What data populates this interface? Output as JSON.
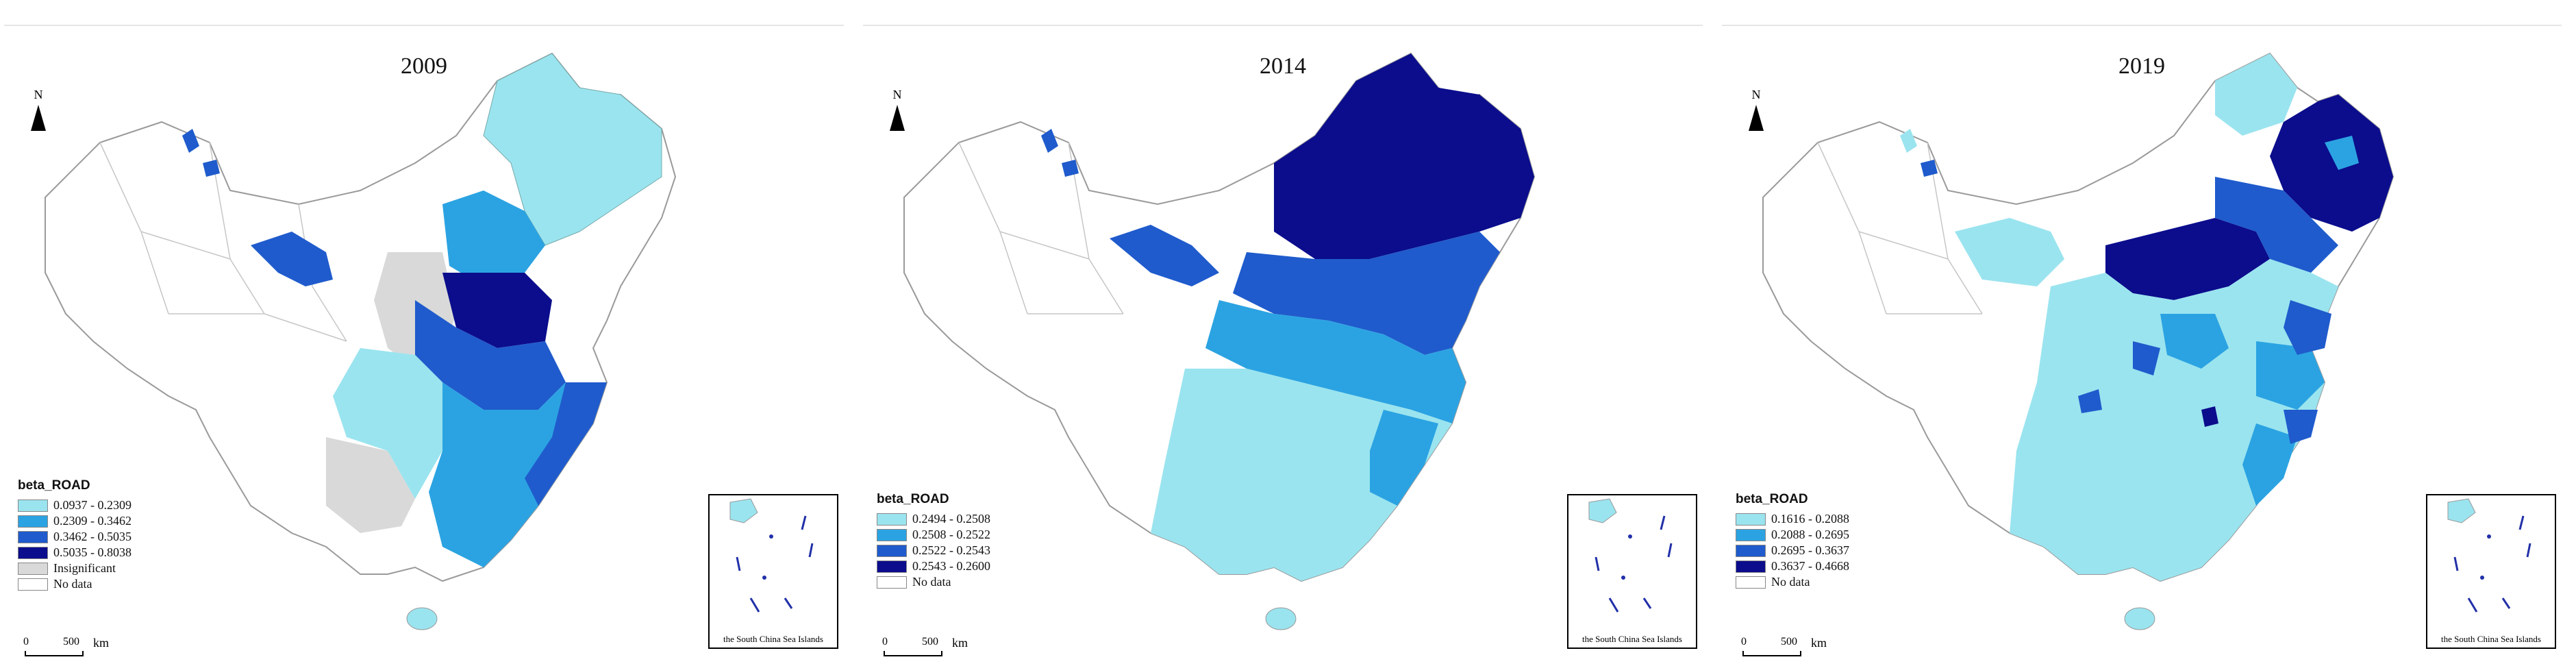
{
  "panels": [
    {
      "title": "2009",
      "legend_title": "beta_ROAD",
      "legend": [
        {
          "label": "0.0937 - 0.2309",
          "color": "#9ae4ef"
        },
        {
          "label": "0.2309 - 0.3462",
          "color": "#2ba3e2"
        },
        {
          "label": "0.3462 - 0.5035",
          "color": "#1f5bcc"
        },
        {
          "label": "0.5035 - 0.8038",
          "color": "#0b0d8c"
        },
        {
          "label": "Insignificant",
          "color": "#d9d9d9"
        },
        {
          "label": "No data",
          "color": "#ffffff"
        }
      ]
    },
    {
      "title": "2014",
      "legend_title": "beta_ROAD",
      "legend": [
        {
          "label": "0.2494 - 0.2508",
          "color": "#9ae4ef"
        },
        {
          "label": "0.2508 - 0.2522",
          "color": "#2ba3e2"
        },
        {
          "label": "0.2522 - 0.2543",
          "color": "#1f5bcc"
        },
        {
          "label": "0.2543 - 0.2600",
          "color": "#0b0d8c"
        },
        {
          "label": "No data",
          "color": "#ffffff"
        }
      ]
    },
    {
      "title": "2019",
      "legend_title": "beta_ROAD",
      "legend": [
        {
          "label": "0.1616 - 0.2088",
          "color": "#9ae4ef"
        },
        {
          "label": "0.2088 - 0.2695",
          "color": "#2ba3e2"
        },
        {
          "label": "0.2695 - 0.3637",
          "color": "#1f5bcc"
        },
        {
          "label": "0.3637 - 0.4668",
          "color": "#0b0d8c"
        },
        {
          "label": "No data",
          "color": "#ffffff"
        }
      ]
    }
  ],
  "north_label": "N",
  "scale": {
    "zero": "0",
    "distance": "500",
    "unit": "km"
  },
  "inset_label": "the South China Sea Islands",
  "colors": {
    "light": "#9ae4ef",
    "medium": "#2ba3e2",
    "strong": "#1f5bcc",
    "dark": "#0b0d8c",
    "grey": "#d9d9d9",
    "outline": "#9a9a9a"
  }
}
